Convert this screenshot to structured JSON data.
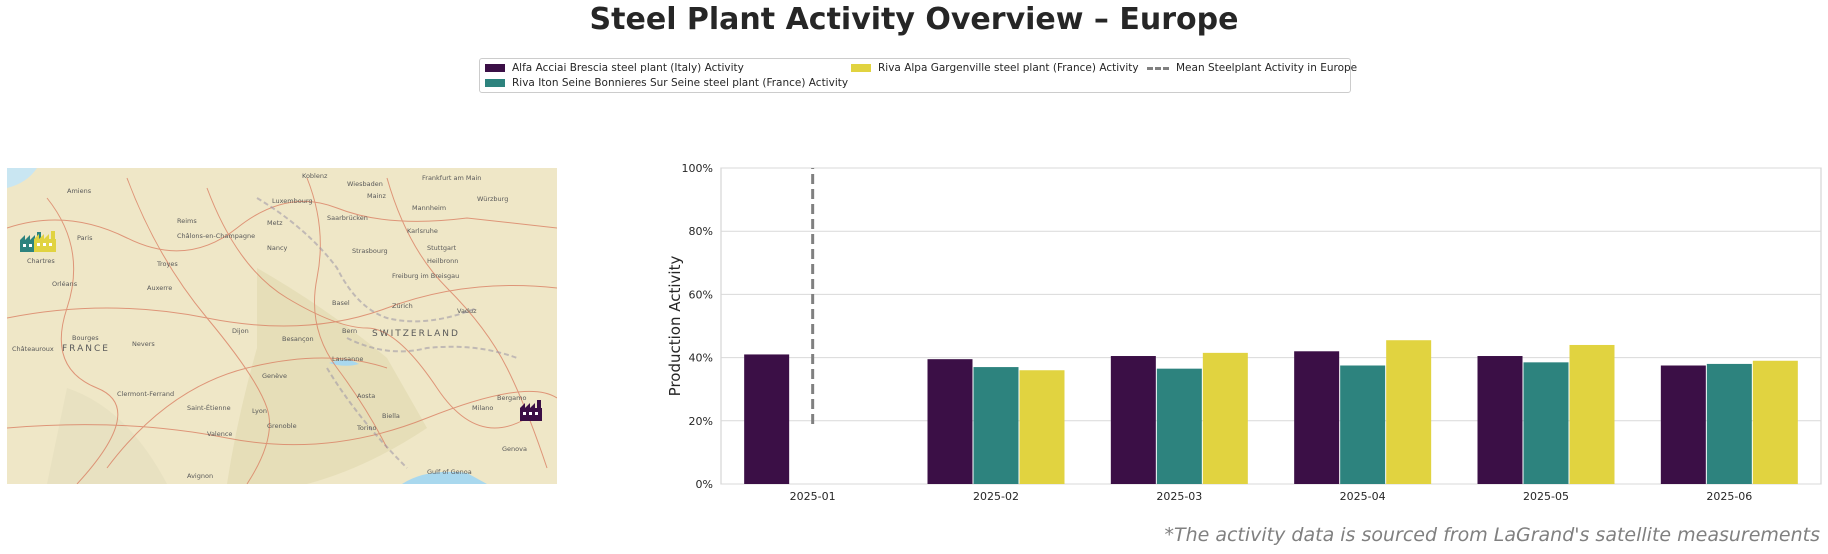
{
  "title": "Steel Plant Activity Overview – Europe",
  "footnote": "*The activity data is sourced from LaGrand's satellite measurements",
  "legend": [
    {
      "label": "Alfa Acciai Brescia steel plant (Italy) Activity",
      "color": "#3b0f46"
    },
    {
      "label": "Riva Iton Seine Bonnieres Sur Seine steel plant (France) Activity",
      "color": "#2d837e"
    },
    {
      "label": "Riva Alpa Gargenville steel plant (France) Activity",
      "color": "#e1d340"
    },
    {
      "label": "Mean Steelplant Activity in Europe",
      "color": "#808080"
    }
  ],
  "map": {
    "labels": [
      "Amiens",
      "Reims",
      "Paris",
      "Chartres",
      "Orléans",
      "Troyes",
      "Auxerre",
      "Bourges",
      "Nevers",
      "Châteauroux",
      "FRANCE",
      "Dijon",
      "Besançon",
      "Metz",
      "Nancy",
      "Strasbourg",
      "Luxembourg",
      "Karlsruhe",
      "Stuttgart",
      "Freiburg im Breisgau",
      "Basel",
      "Zürich",
      "Bern",
      "SWITZERLAND",
      "Lausanne",
      "Genève",
      "Lyon",
      "Clermont-Ferrand",
      "Saint-Étienne",
      "Grenoble",
      "Torino",
      "Milano",
      "Bergamo",
      "Vaduz",
      "Mannheim",
      "Frankfurt am Main",
      "Würzburg",
      "Heilbronn",
      "Koblenz",
      "Wiesbaden",
      "Mainz",
      "Saarbrücken",
      "Châlons-en-Champagne",
      "Valence",
      "Avignon",
      "Gulf of Genoa",
      "Aosta",
      "Biella",
      "Genova"
    ],
    "markers": [
      {
        "plant": "Riva Iton Seine Bonnieres Sur Seine",
        "color": "#2d837e",
        "icon": "factory-icon"
      },
      {
        "plant": "Riva Alpa Gargenville",
        "color": "#e1d340",
        "icon": "factory-icon"
      },
      {
        "plant": "Alfa Acciai Brescia",
        "color": "#3b0f46",
        "icon": "factory-icon"
      }
    ]
  },
  "chart_data": {
    "type": "bar",
    "title": "Steel Plant Activity Overview – Europe",
    "xlabel": "",
    "ylabel": "Production Activity",
    "categories": [
      "2025-01",
      "2025-02",
      "2025-03",
      "2025-04",
      "2025-05",
      "2025-06"
    ],
    "yticks": [
      "0%",
      "20%",
      "40%",
      "60%",
      "80%",
      "100%"
    ],
    "ylim": [
      0,
      100
    ],
    "grid": true,
    "legend_position": "top-center",
    "series": [
      {
        "name": "Alfa Acciai Brescia steel plant (Italy) Activity",
        "color": "#3b0f46",
        "values": [
          41,
          39.5,
          40.5,
          42,
          40.5,
          37.5
        ]
      },
      {
        "name": "Riva Iton Seine Bonnieres Sur Seine steel plant (France) Activity",
        "color": "#2d837e",
        "values": [
          null,
          37,
          36.5,
          37.5,
          38.5,
          38
        ]
      },
      {
        "name": "Riva Alpa Gargenville steel plant (France) Activity",
        "color": "#e1d340",
        "values": [
          null,
          36,
          41.5,
          45.5,
          44,
          39
        ]
      }
    ],
    "mean_line": {
      "name": "Mean Steelplant Activity in Europe",
      "x": "2025-01",
      "y_range": [
        19,
        100
      ],
      "color": "#808080"
    }
  }
}
